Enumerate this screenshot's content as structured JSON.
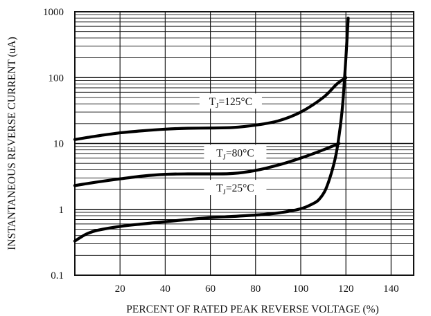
{
  "chart_data": {
    "type": "line",
    "xlabel": "PERCENT OF RATED PEAK REVERSE VOLTAGE (%)",
    "ylabel": "INSTANTANEOUS REVERSE CURRENT (uA)",
    "xlim": [
      0,
      150
    ],
    "ylim": [
      0.1,
      1000
    ],
    "yscale": "log",
    "grid": true,
    "x_ticks": [
      {
        "value": 20,
        "label": "20"
      },
      {
        "value": 40,
        "label": "40"
      },
      {
        "value": 60,
        "label": "60"
      },
      {
        "value": 80,
        "label": "80"
      },
      {
        "value": 100,
        "label": "100"
      },
      {
        "value": 120,
        "label": "120"
      },
      {
        "value": 140,
        "label": "140"
      }
    ],
    "y_ticks": [
      {
        "value": 0.1,
        "label": "0.1"
      },
      {
        "value": 1,
        "label": "1"
      },
      {
        "value": 10,
        "label": "10"
      },
      {
        "value": 100,
        "label": "100"
      },
      {
        "value": 1000,
        "label": "1000"
      }
    ],
    "series": [
      {
        "name": "TJ=125°C",
        "label_main": "T",
        "label_sub": "J",
        "label_rest": "=125°C",
        "label_at": {
          "x": 69,
          "y": 42
        },
        "x": [
          0,
          10,
          20,
          30,
          40,
          50,
          60,
          70,
          80,
          90,
          100,
          110,
          116,
          120
        ],
        "y": [
          11.5,
          13,
          14.5,
          15.6,
          16.5,
          17,
          17.2,
          17.5,
          19,
          22,
          30,
          50,
          80,
          100
        ]
      },
      {
        "name": "TJ=80°C",
        "label_main": "T",
        "label_sub": "J",
        "label_rest": "=80°C",
        "label_at": {
          "x": 71,
          "y": 7
        },
        "x": [
          0,
          10,
          20,
          30,
          40,
          50,
          60,
          70,
          80,
          90,
          100,
          110,
          117
        ],
        "y": [
          2.3,
          2.6,
          2.9,
          3.2,
          3.4,
          3.45,
          3.45,
          3.5,
          3.9,
          4.7,
          6,
          8,
          10
        ]
      },
      {
        "name": "TJ=25°C",
        "label_main": "T",
        "label_sub": "J",
        "label_rest": "=25°C",
        "label_at": {
          "x": 71,
          "y": 2.05
        },
        "x": [
          0,
          5,
          10,
          20,
          30,
          40,
          50,
          60,
          70,
          80,
          90,
          100,
          105,
          108,
          111,
          114,
          116,
          118,
          119,
          120,
          121
        ],
        "y": [
          0.33,
          0.42,
          0.48,
          0.55,
          0.6,
          0.65,
          0.7,
          0.75,
          0.78,
          0.82,
          0.88,
          1.02,
          1.2,
          1.4,
          2,
          4,
          8,
          25,
          60,
          200,
          800
        ]
      }
    ]
  }
}
